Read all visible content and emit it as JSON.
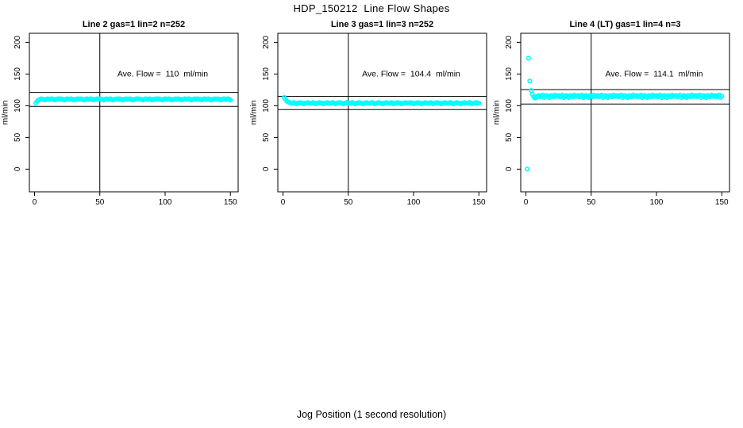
{
  "title": "HDP_150212  Line Flow Shapes",
  "xlabel": "Jog Position (1 second resolution)",
  "colors": {
    "points": "#00FFFF",
    "axis": "#000000",
    "background": "#FFFFFF"
  },
  "chart_data": {
    "type": "scatter",
    "title": "HDP_150212  Line Flow Shapes",
    "xlabel": "Jog Position (1 second resolution)",
    "ylabel": "ml/min",
    "xlim": [
      0,
      150
    ],
    "ylim": [
      0,
      200
    ],
    "x_ticks": [
      0,
      50,
      100,
      150
    ],
    "y_ticks": [
      0,
      50,
      100,
      150,
      200
    ],
    "grid": false,
    "legend": "none",
    "point_color": "#00FFFF",
    "panels": [
      {
        "title": "Line 2 gas=1 lin=2 n=252",
        "annotation": "Ave. Flow =  110  ml/min",
        "ave_flow": 110,
        "ref_lines": [
          99,
          121
        ],
        "vline_x": 50,
        "ylabel": "ml/min",
        "x_start": 1,
        "x_step": 1,
        "y": [
          104,
          107,
          109,
          110,
          111,
          110,
          110,
          109,
          110,
          111,
          110,
          110,
          111,
          110,
          109,
          110,
          110,
          111,
          110,
          111,
          110,
          110,
          109,
          110,
          111,
          110,
          110,
          111,
          110,
          109,
          110,
          110,
          111,
          110,
          111,
          110,
          110,
          109,
          110,
          111,
          110,
          110,
          111,
          110,
          109,
          110,
          110,
          111,
          110,
          111,
          110,
          110,
          109,
          110,
          111,
          110,
          110,
          111,
          110,
          109,
          110,
          110,
          111,
          110,
          111,
          110,
          110,
          109,
          110,
          111,
          110,
          110,
          111,
          110,
          109,
          110,
          110,
          111,
          110,
          111,
          110,
          110,
          109,
          110,
          111,
          110,
          110,
          111,
          110,
          109,
          110,
          110,
          111,
          110,
          111,
          110,
          110,
          109,
          110,
          111,
          110,
          110,
          111,
          110,
          109,
          110,
          110,
          111,
          110,
          111,
          110,
          110,
          109,
          110,
          111,
          110,
          110,
          111,
          110,
          109,
          110,
          110,
          111,
          110,
          111,
          110,
          110,
          109,
          110,
          111,
          110,
          110,
          111,
          110,
          109,
          110,
          110,
          111,
          110,
          111,
          110,
          110,
          109,
          110,
          111,
          110,
          110,
          111,
          110,
          109
        ]
      },
      {
        "title": "Line 3 gas=1 lin=3 n=252",
        "annotation": "Ave. Flow =  104.4  ml/min",
        "ave_flow": 104.4,
        "ref_lines": [
          94,
          114.8
        ],
        "vline_x": 50,
        "ylabel": "ml/min",
        "x_start": 1,
        "x_step": 1,
        "y": [
          113,
          110,
          107,
          106,
          105,
          104,
          104,
          105,
          104,
          103,
          104,
          104,
          105,
          104,
          104,
          103,
          104,
          104,
          105,
          104,
          104,
          104,
          105,
          104,
          103,
          104,
          104,
          105,
          104,
          104,
          103,
          104,
          104,
          105,
          104,
          104,
          104,
          105,
          104,
          103,
          104,
          104,
          105,
          104,
          104,
          103,
          104,
          104,
          105,
          104,
          104,
          104,
          105,
          104,
          103,
          104,
          104,
          105,
          104,
          104,
          103,
          104,
          104,
          105,
          104,
          104,
          104,
          105,
          104,
          103,
          104,
          104,
          105,
          104,
          104,
          103,
          104,
          104,
          105,
          104,
          104,
          104,
          105,
          104,
          103,
          104,
          104,
          105,
          104,
          104,
          103,
          104,
          104,
          105,
          104,
          104,
          104,
          105,
          104,
          103,
          104,
          104,
          105,
          104,
          104,
          103,
          104,
          104,
          105,
          104,
          104,
          104,
          105,
          104,
          103,
          104,
          104,
          105,
          104,
          104,
          103,
          104,
          104,
          105,
          104,
          104,
          104,
          105,
          104,
          103,
          104,
          104,
          105,
          104,
          104,
          103,
          104,
          104,
          105,
          104,
          104,
          104,
          105,
          104,
          103,
          104,
          104,
          105,
          104,
          104
        ]
      },
      {
        "title": "Line 4 (LT) gas=1 lin=4 n=3",
        "annotation": "Ave. Flow =  114.1  ml/min",
        "ave_flow": 114.1,
        "ref_lines": [
          102.7,
          125.5
        ],
        "vline_x": 50,
        "ylabel": "ml/min",
        "x_start": 1,
        "x_step": 1,
        "y": [
          0,
          175,
          139,
          124,
          118,
          114,
          112,
          113,
          115,
          116,
          114,
          115,
          117,
          113,
          115,
          116,
          114,
          113,
          116,
          115,
          114,
          117,
          115,
          115,
          116,
          114,
          115,
          117,
          113,
          115,
          116,
          114,
          113,
          116,
          115,
          114,
          117,
          115,
          115,
          116,
          114,
          115,
          117,
          113,
          115,
          116,
          114,
          113,
          116,
          115,
          114,
          117,
          115,
          115,
          116,
          114,
          115,
          117,
          113,
          115,
          116,
          114,
          113,
          116,
          115,
          114,
          117,
          115,
          115,
          116,
          114,
          115,
          117,
          113,
          115,
          116,
          114,
          113,
          116,
          115,
          114,
          117,
          115,
          115,
          116,
          114,
          115,
          117,
          113,
          115,
          116,
          114,
          113,
          116,
          115,
          114,
          117,
          115,
          115,
          116,
          114,
          115,
          117,
          113,
          115,
          116,
          114,
          113,
          116,
          115,
          114,
          117,
          115,
          115,
          116,
          114,
          115,
          117,
          113,
          115,
          116,
          114,
          113,
          116,
          115,
          114,
          117,
          115,
          115,
          116,
          114,
          115,
          117,
          113,
          115,
          116,
          114,
          113,
          116,
          115,
          114,
          117,
          115,
          115,
          116,
          114,
          115,
          117,
          113,
          115
        ]
      }
    ]
  }
}
